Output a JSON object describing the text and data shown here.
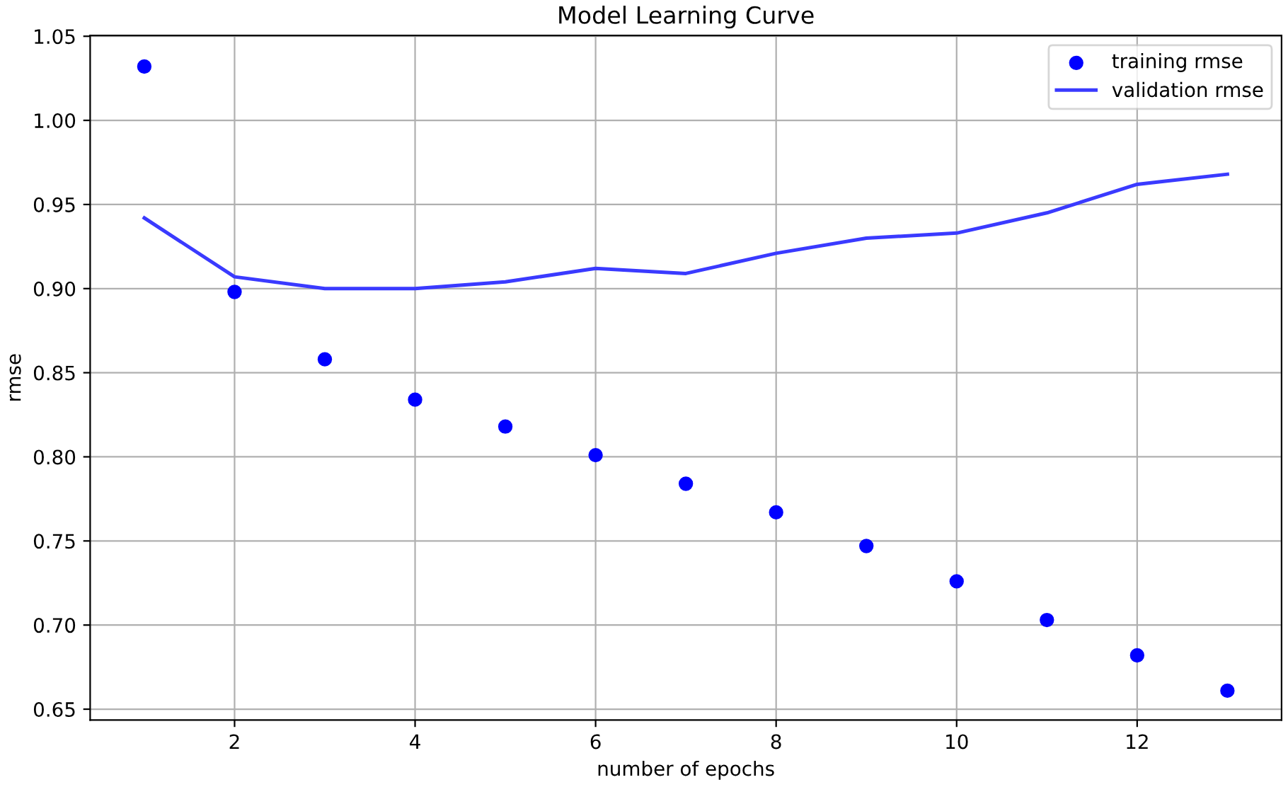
{
  "chart_data": {
    "type": "scatter",
    "title": "Model Learning Curve",
    "xlabel": "number of epochs",
    "ylabel": "rmse",
    "x": [
      1,
      2,
      3,
      4,
      5,
      6,
      7,
      8,
      9,
      10,
      11,
      12,
      13
    ],
    "series": [
      {
        "name": "training rmse",
        "color": "#0000ff",
        "marker": "circle",
        "values": [
          1.032,
          0.898,
          0.858,
          0.834,
          0.818,
          0.801,
          0.784,
          0.767,
          0.747,
          0.726,
          0.703,
          0.682,
          0.661
        ]
      },
      {
        "name": "validation rmse",
        "type": "line",
        "color": "#3a3aff",
        "line_style": "solid",
        "values": [
          0.942,
          0.907,
          0.9,
          0.9,
          0.904,
          0.912,
          0.909,
          0.921,
          0.93,
          0.933,
          0.945,
          0.962,
          0.968
        ]
      }
    ],
    "xlim": [
      0.4,
      13.6
    ],
    "xticks": [
      2,
      4,
      6,
      8,
      10,
      12
    ],
    "ylim": [
      0.6435,
      1.0505
    ],
    "yticks": [
      0.65,
      {
        "value": 0.7,
        "label": "0.70"
      },
      0.75,
      {
        "value": 0.8,
        "label": "0.80"
      },
      0.85,
      {
        "value": 0.9,
        "label": "0.90"
      },
      0.95,
      {
        "value": 1.0,
        "label": "1.00"
      },
      1.05
    ],
    "grid": true,
    "legend": "top right"
  }
}
